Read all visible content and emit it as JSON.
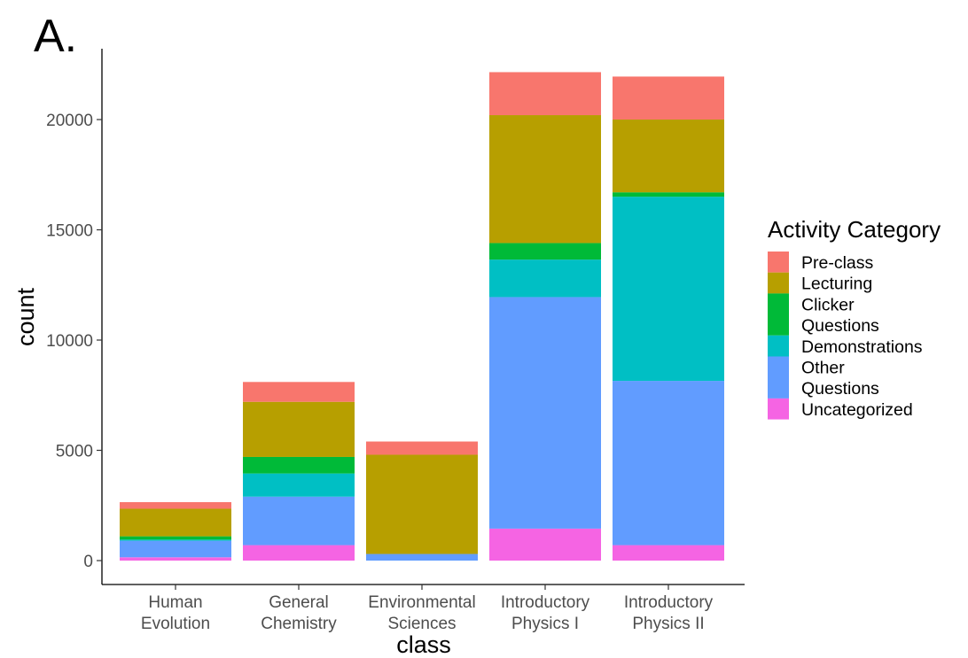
{
  "panel_label": "A.",
  "chart_data": {
    "type": "bar",
    "stacked": true,
    "xlabel": "class",
    "ylabel": "count",
    "ylim": [
      0,
      22000
    ],
    "yticks": [
      0,
      5000,
      10000,
      15000,
      20000
    ],
    "ytick_labels": [
      "0",
      "5000",
      "10000",
      "15000",
      "20000"
    ],
    "grid": false,
    "categories": [
      [
        "Human",
        "Evolution"
      ],
      [
        "General",
        "Chemistry"
      ],
      [
        "Environmental",
        "Sciences"
      ],
      [
        "Introductory",
        "Physics I"
      ],
      [
        "Introductory",
        "Physics II"
      ]
    ],
    "legend": {
      "title": "Activity Category",
      "placement": "right"
    },
    "series": [
      {
        "name": "Uncategorized",
        "legend_lines": [
          "Uncategorized"
        ],
        "color": "#F564E3",
        "values": [
          150,
          700,
          0,
          1450,
          700
        ]
      },
      {
        "name": "Other Questions",
        "legend_lines": [
          "Other",
          "Questions"
        ],
        "color": "#619CFF",
        "values": [
          750,
          2200,
          300,
          10500,
          7450
        ]
      },
      {
        "name": "Demonstrations",
        "legend_lines": [
          "Demonstrations"
        ],
        "color": "#00BFC4",
        "values": [
          50,
          1050,
          0,
          1700,
          8350
        ]
      },
      {
        "name": "Clicker Questions",
        "legend_lines": [
          "Clicker",
          "Questions"
        ],
        "color": "#00BA38",
        "values": [
          150,
          750,
          0,
          750,
          200
        ]
      },
      {
        "name": "Lecturing",
        "legend_lines": [
          "Lecturing"
        ],
        "color": "#B79F00",
        "values": [
          1250,
          2500,
          4500,
          5800,
          3300
        ]
      },
      {
        "name": "Pre-class",
        "legend_lines": [
          "Pre-class"
        ],
        "color": "#F8766D",
        "values": [
          300,
          900,
          600,
          1950,
          1950
        ]
      }
    ],
    "legend_order": [
      "Pre-class",
      "Lecturing",
      "Clicker Questions",
      "Demonstrations",
      "Other Questions",
      "Uncategorized"
    ]
  }
}
